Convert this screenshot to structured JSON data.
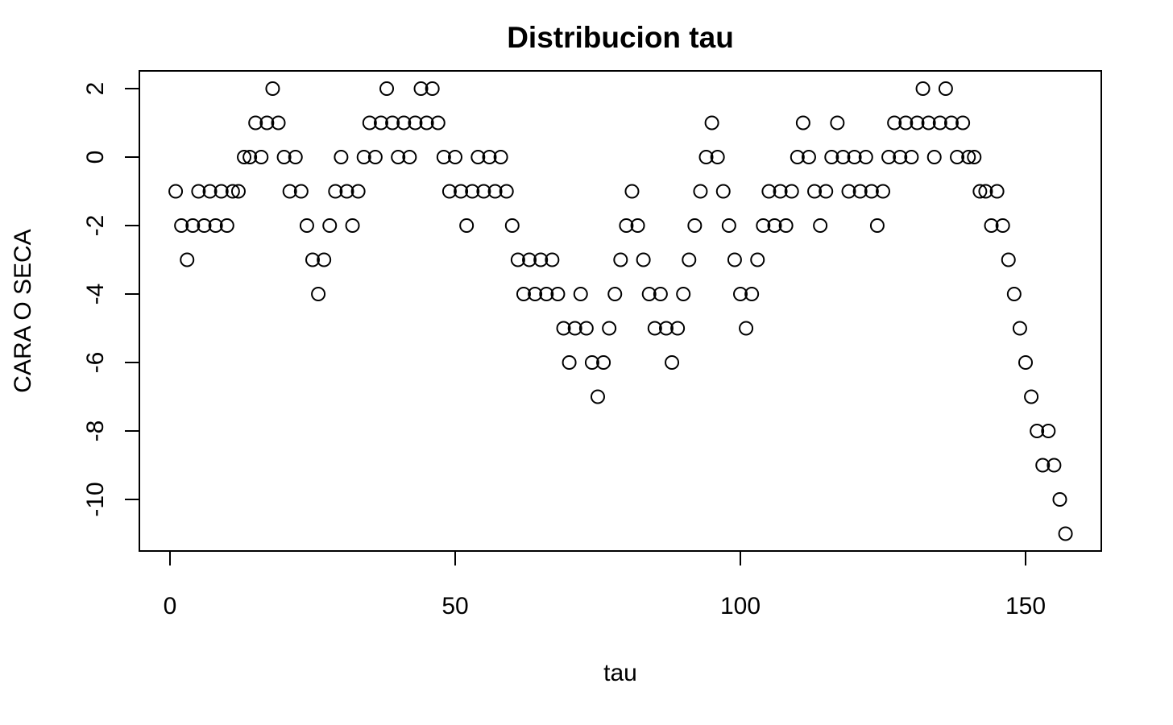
{
  "chart_data": {
    "type": "scatter",
    "title": "Distribucion tau",
    "xlabel": "tau",
    "ylabel": "CARA O SECA",
    "xlim": [
      -5,
      164
    ],
    "ylim": [
      -11.5,
      2.5
    ],
    "x_ticks": [
      0,
      50,
      100,
      150
    ],
    "y_ticks": [
      -10,
      -8,
      -6,
      -4,
      -2,
      0,
      2
    ],
    "x_tick_labels": [
      "0",
      "50",
      "100",
      "150"
    ],
    "y_tick_labels": [
      "-10",
      "-8",
      "-6",
      "-4",
      "-2",
      "0",
      "2"
    ],
    "grid": false,
    "marker": "open-circle",
    "colors": {
      "points": "#000000",
      "axes": "#000000",
      "background": "#ffffff"
    },
    "series": [
      {
        "x": [
          1,
          2,
          3,
          4,
          5,
          6,
          7,
          8,
          9,
          10,
          11,
          12,
          13,
          14,
          15,
          16,
          17,
          18,
          19,
          20,
          21,
          22,
          23,
          24,
          25,
          26,
          27,
          28,
          29,
          30,
          31,
          32,
          33,
          34,
          35,
          36,
          37,
          38,
          39,
          40,
          41,
          42,
          43,
          44,
          45,
          46,
          47,
          48,
          49,
          50,
          51,
          52,
          53,
          54,
          55,
          56,
          57,
          58,
          59,
          60,
          61,
          62,
          63,
          64,
          65,
          66,
          67,
          68,
          69,
          70,
          71,
          72,
          73,
          74,
          75,
          76,
          77,
          78,
          79,
          80,
          81,
          82,
          83,
          84,
          85,
          86,
          87,
          88,
          89,
          90,
          91,
          92,
          93,
          94,
          95,
          96,
          97,
          98,
          99,
          100,
          101,
          102,
          103,
          104,
          105,
          106,
          107,
          108,
          109,
          110,
          111,
          112,
          113,
          114,
          115,
          116,
          117,
          118,
          119,
          120,
          121,
          122,
          123,
          124,
          125,
          126,
          127,
          128,
          129,
          130,
          131,
          132,
          133,
          134,
          135,
          136,
          137,
          138,
          139,
          140,
          141,
          142,
          143,
          144,
          145,
          146,
          147,
          148,
          149,
          150,
          151,
          152,
          153,
          154,
          155,
          156,
          157
        ],
        "y": [
          -1,
          -2,
          -3,
          -2,
          -1,
          -2,
          -1,
          -2,
          -1,
          -2,
          -1,
          -1,
          0,
          0,
          1,
          0,
          1,
          2,
          1,
          0,
          -1,
          0,
          -1,
          -2,
          -3,
          -4,
          -3,
          -2,
          -1,
          0,
          -1,
          -2,
          -1,
          0,
          1,
          0,
          1,
          2,
          1,
          0,
          1,
          0,
          1,
          2,
          1,
          2,
          1,
          0,
          -1,
          0,
          -1,
          -2,
          -1,
          0,
          -1,
          0,
          -1,
          0,
          -1,
          -2,
          -3,
          -4,
          -3,
          -4,
          -3,
          -4,
          -3,
          -4,
          -5,
          -6,
          -5,
          -4,
          -5,
          -6,
          -7,
          -6,
          -5,
          -4,
          -3,
          -2,
          -1,
          -2,
          -3,
          -4,
          -5,
          -4,
          -5,
          -6,
          -5,
          -4,
          -3,
          -2,
          -1,
          0,
          1,
          0,
          -1,
          -2,
          -3,
          -4,
          -5,
          -4,
          -3,
          -2,
          -1,
          -2,
          -1,
          -2,
          -1,
          0,
          1,
          0,
          -1,
          -2,
          -1,
          0,
          1,
          0,
          -1,
          0,
          -1,
          0,
          -1,
          -2,
          -1,
          0,
          1,
          0,
          1,
          0,
          1,
          2,
          1,
          0,
          1,
          2,
          1,
          0,
          1,
          0,
          0,
          -1,
          -1,
          -2,
          -1,
          -2,
          -3,
          -4,
          -5,
          -6,
          -7,
          -8,
          -9,
          -8,
          -9,
          -10,
          -11
        ]
      }
    ]
  }
}
